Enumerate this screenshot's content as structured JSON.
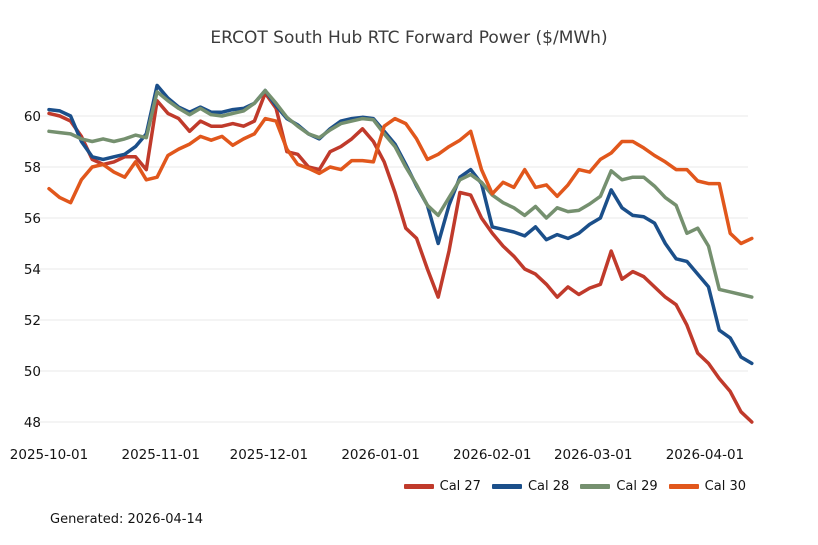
{
  "title": "ERCOT South Hub RTC Forward Power ($/MWh)",
  "footer": {
    "generated_label": "Generated: 2026-04-14"
  },
  "colors": {
    "background": "#ffffff",
    "grid": "#e8e8e8",
    "title_text": "#3c3c3c",
    "tick_text": "#141414"
  },
  "chart_data": {
    "type": "line",
    "title": "ERCOT South Hub RTC Forward Power ($/MWh)",
    "xlabel": "",
    "ylabel": "",
    "ylim": [
      47.5,
      61.5
    ],
    "yticks": [
      48,
      50,
      52,
      54,
      56,
      58,
      60
    ],
    "xticks": [
      "2025-10-01",
      "2025-11-01",
      "2025-12-01",
      "2026-01-01",
      "2026-02-01",
      "2026-03-01",
      "2026-04-01"
    ],
    "grid": "horizontal-only",
    "legend_position": "bottom-right",
    "x_start": "2025-10-01",
    "x_end": "2026-04-14",
    "x_dates": [
      "2025-10-01",
      "2025-10-04",
      "2025-10-07",
      "2025-10-10",
      "2025-10-13",
      "2025-10-16",
      "2025-10-19",
      "2025-10-22",
      "2025-10-25",
      "2025-10-28",
      "2025-10-31",
      "2025-11-03",
      "2025-11-06",
      "2025-11-09",
      "2025-11-12",
      "2025-11-15",
      "2025-11-18",
      "2025-11-21",
      "2025-11-24",
      "2025-11-27",
      "2025-11-30",
      "2025-12-03",
      "2025-12-06",
      "2025-12-09",
      "2025-12-12",
      "2025-12-15",
      "2025-12-18",
      "2025-12-21",
      "2025-12-24",
      "2025-12-27",
      "2025-12-30",
      "2026-01-02",
      "2026-01-05",
      "2026-01-08",
      "2026-01-11",
      "2026-01-14",
      "2026-01-17",
      "2026-01-20",
      "2026-01-23",
      "2026-01-26",
      "2026-01-29",
      "2026-02-01",
      "2026-02-04",
      "2026-02-07",
      "2026-02-10",
      "2026-02-13",
      "2026-02-16",
      "2026-02-19",
      "2026-02-22",
      "2026-02-25",
      "2026-02-28",
      "2026-03-03",
      "2026-03-06",
      "2026-03-09",
      "2026-03-12",
      "2026-03-15",
      "2026-03-18",
      "2026-03-21",
      "2026-03-24",
      "2026-03-27",
      "2026-03-30",
      "2026-04-02",
      "2026-04-05",
      "2026-04-08",
      "2026-04-11",
      "2026-04-14"
    ],
    "series": [
      {
        "name": "Cal 27",
        "color": "#c03a2b",
        "values": [
          60.1,
          60.0,
          59.8,
          59.2,
          58.3,
          58.1,
          58.2,
          58.4,
          58.4,
          57.9,
          60.6,
          60.1,
          59.9,
          59.4,
          59.8,
          59.6,
          59.6,
          59.7,
          59.6,
          59.8,
          60.9,
          60.3,
          58.6,
          58.5,
          58.0,
          57.9,
          58.6,
          58.8,
          59.1,
          59.5,
          59.0,
          58.2,
          57.0,
          55.6,
          55.2,
          54.0,
          52.9,
          54.7,
          57.0,
          56.9,
          56.0,
          55.4,
          54.9,
          54.5,
          54.0,
          53.8,
          53.4,
          52.9,
          53.3,
          53.0,
          53.25,
          53.4,
          54.7,
          53.6,
          53.9,
          53.7,
          53.3,
          52.9,
          52.6,
          51.8,
          50.7,
          50.3,
          49.7,
          49.2,
          48.4,
          48.0
        ]
      },
      {
        "name": "Cal 28",
        "color": "#1b4f8a",
        "values": [
          60.25,
          60.2,
          60.0,
          59.0,
          58.4,
          58.3,
          58.4,
          58.5,
          58.8,
          59.3,
          61.2,
          60.7,
          60.35,
          60.15,
          60.35,
          60.15,
          60.15,
          60.25,
          60.3,
          60.5,
          61.0,
          60.4,
          59.9,
          59.65,
          59.3,
          59.1,
          59.5,
          59.8,
          59.9,
          59.95,
          59.9,
          59.4,
          58.9,
          58.1,
          57.25,
          56.5,
          55.0,
          56.5,
          57.6,
          57.9,
          57.35,
          55.65,
          55.55,
          55.45,
          55.3,
          55.65,
          55.15,
          55.35,
          55.2,
          55.4,
          55.75,
          56.0,
          57.1,
          56.4,
          56.1,
          56.05,
          55.8,
          55.0,
          54.4,
          54.3,
          53.8,
          53.3,
          51.6,
          51.3,
          50.55,
          50.3
        ]
      },
      {
        "name": "Cal 29",
        "color": "#75906f",
        "values": [
          59.4,
          59.35,
          59.3,
          59.1,
          59.0,
          59.1,
          59.0,
          59.1,
          59.25,
          59.15,
          60.95,
          60.6,
          60.3,
          60.05,
          60.3,
          60.05,
          60.0,
          60.1,
          60.2,
          60.5,
          61.0,
          60.5,
          59.95,
          59.6,
          59.3,
          59.15,
          59.45,
          59.7,
          59.8,
          59.9,
          59.85,
          59.3,
          58.8,
          58.0,
          57.3,
          56.5,
          56.1,
          56.8,
          57.5,
          57.7,
          57.4,
          56.9,
          56.6,
          56.4,
          56.1,
          56.45,
          56.0,
          56.4,
          56.25,
          56.3,
          56.55,
          56.85,
          57.85,
          57.5,
          57.6,
          57.6,
          57.25,
          56.8,
          56.5,
          55.4,
          55.6,
          54.9,
          53.2,
          53.1,
          53.0,
          52.9
        ]
      },
      {
        "name": "Cal 30",
        "color": "#e1571c",
        "values": [
          57.15,
          56.8,
          56.6,
          57.5,
          58.0,
          58.1,
          57.8,
          57.6,
          58.2,
          57.5,
          57.6,
          58.45,
          58.7,
          58.9,
          59.2,
          59.05,
          59.2,
          58.85,
          59.1,
          59.3,
          59.9,
          59.8,
          58.7,
          58.1,
          57.95,
          57.75,
          58.0,
          57.9,
          58.25,
          58.25,
          58.2,
          59.6,
          59.9,
          59.7,
          59.1,
          58.3,
          58.5,
          58.8,
          59.05,
          59.4,
          57.9,
          56.95,
          57.4,
          57.2,
          57.9,
          57.2,
          57.3,
          56.85,
          57.3,
          57.9,
          57.8,
          58.3,
          58.55,
          59.0,
          59.0,
          58.75,
          58.45,
          58.2,
          57.9,
          57.9,
          57.45,
          57.35,
          57.35,
          55.4,
          55.0,
          55.2
        ]
      }
    ]
  }
}
